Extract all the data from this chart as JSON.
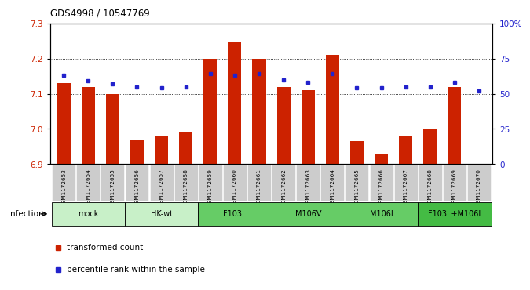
{
  "title": "GDS4998 / 10547769",
  "samples": [
    "GSM1172653",
    "GSM1172654",
    "GSM1172655",
    "GSM1172656",
    "GSM1172657",
    "GSM1172658",
    "GSM1172659",
    "GSM1172660",
    "GSM1172661",
    "GSM1172662",
    "GSM1172663",
    "GSM1172664",
    "GSM1172665",
    "GSM1172666",
    "GSM1172667",
    "GSM1172668",
    "GSM1172669",
    "GSM1172670"
  ],
  "transformed_counts": [
    7.13,
    7.12,
    7.1,
    6.97,
    6.98,
    6.99,
    7.2,
    7.245,
    7.2,
    7.12,
    7.11,
    7.21,
    6.965,
    6.93,
    6.98,
    7.0,
    7.12,
    6.9
  ],
  "percentile_ranks": [
    63,
    59,
    57,
    55,
    54,
    55,
    64,
    63,
    64,
    60,
    58,
    64,
    54,
    54,
    55,
    55,
    58,
    52
  ],
  "ylim_left": [
    6.9,
    7.3
  ],
  "ylim_right": [
    0,
    100
  ],
  "yticks_left": [
    6.9,
    7.0,
    7.1,
    7.2,
    7.3
  ],
  "yticks_right": [
    0,
    25,
    50,
    75,
    100
  ],
  "ytick_labels_right": [
    "0",
    "25",
    "50",
    "75",
    "100%"
  ],
  "groups": [
    {
      "label": "mock",
      "start": 0,
      "end": 2,
      "color": "#c8f0c8"
    },
    {
      "label": "HK-wt",
      "start": 3,
      "end": 5,
      "color": "#c8f0c8"
    },
    {
      "label": "F103L",
      "start": 6,
      "end": 8,
      "color": "#66cc66"
    },
    {
      "label": "M106V",
      "start": 9,
      "end": 11,
      "color": "#66cc66"
    },
    {
      "label": "M106I",
      "start": 12,
      "end": 14,
      "color": "#66cc66"
    },
    {
      "label": "F103L+M106I",
      "start": 15,
      "end": 17,
      "color": "#44bb44"
    }
  ],
  "bar_color": "#cc2200",
  "dot_color": "#2222cc",
  "bar_bottom": 6.9,
  "bg_color": "#ffffff",
  "tick_label_color_left": "#cc2200",
  "tick_label_color_right": "#2222cc",
  "infection_label": "infection",
  "legend_items": [
    {
      "label": "transformed count",
      "color": "#cc2200",
      "marker": "s"
    },
    {
      "label": "percentile rank within the sample",
      "color": "#2222cc",
      "marker": "s"
    }
  ],
  "xtick_bg_color": "#cccccc",
  "grid_yticks": [
    7.0,
    7.1,
    7.2
  ]
}
